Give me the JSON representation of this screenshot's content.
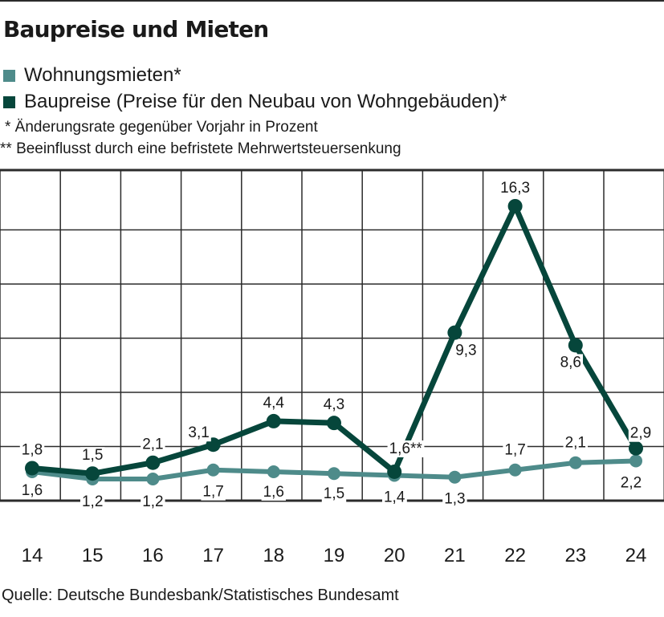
{
  "colors": {
    "mieten": "#4e8b8a",
    "baupreise": "#06463b",
    "grid": "#2b2b2b"
  },
  "chart_data": {
    "type": "line",
    "title": "Baupreise und Mieten",
    "categories": [
      "14",
      "15",
      "16",
      "17",
      "18",
      "19",
      "20",
      "21",
      "22",
      "23",
      "24"
    ],
    "series": [
      {
        "name": "Wohnungsmieten*",
        "color": "#4e8b8a",
        "values": [
          1.6,
          1.2,
          1.2,
          1.7,
          1.6,
          1.5,
          1.4,
          1.3,
          1.7,
          2.1,
          2.2
        ],
        "labels": [
          "1,6",
          "1,2",
          "1,2",
          "1,7",
          "1,6",
          "1,5",
          "1,4",
          "1,3",
          "1,7",
          "2,1",
          "2,2"
        ]
      },
      {
        "name": "Baupreise (Preise für den Neubau von Wohngebäuden)*",
        "color": "#06463b",
        "values": [
          1.8,
          1.5,
          2.1,
          3.1,
          4.4,
          4.3,
          1.6,
          9.3,
          16.3,
          8.6,
          2.9
        ],
        "labels": [
          "1,8",
          "1,5",
          "2,1",
          "3,1",
          "4,4",
          "4,3",
          "1,6**",
          "9,3",
          "16,3",
          "8,6",
          "2,9"
        ]
      }
    ],
    "notes": [
      "* Änderungsrate gegenüber Vorjahr in Prozent",
      "** Beeinflusst durch eine befristete Mehrwertsteuersenkung"
    ],
    "source": "Quelle: Deutsche Bundesbank/Statistisches Bundesamt",
    "ylim": [
      0,
      18
    ],
    "grid": true,
    "legend_position": "top-left"
  }
}
